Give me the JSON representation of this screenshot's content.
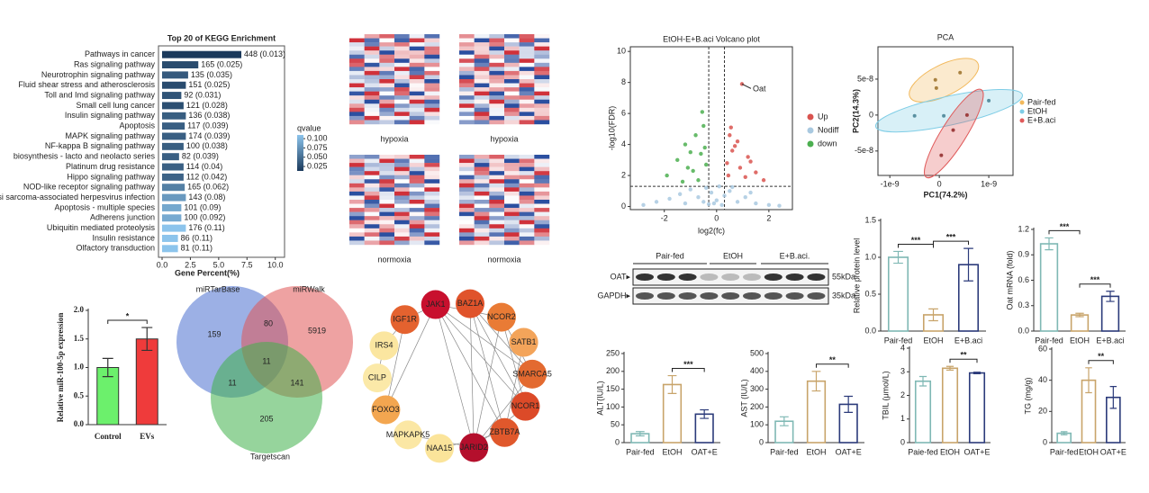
{
  "chart_data": [
    {
      "type": "barh",
      "title": "Top 20 of KEGG Enrichment",
      "xlabel": "Gene Percent(%)",
      "categories": [
        "Pathways in cancer",
        "Ras signaling pathway",
        "Neurotrophin signaling pathway",
        "Fluid shear stress and atherosclerosis",
        "Toll and Imd signaling pathway",
        "Small cell lung cancer",
        "Insulin signaling pathway",
        "Apoptosis",
        "MAPK signaling pathway",
        "NF-kappa B signaling pathway",
        "biosynthesis - lacto and neolacto series",
        "Platinum drug resistance",
        "Hippo signaling pathway",
        "NOD-like receptor signaling pathway",
        "Kaposi sarcoma-associated herpesvirus infection",
        "Apoptosis - multiple species",
        "Adherens junction",
        "Ubiquitin mediated proteolysis",
        "Insulin resistance",
        "Olfactory transduction"
      ],
      "values": [
        7.0,
        3.2,
        2.3,
        2.1,
        1.7,
        1.9,
        2.1,
        2.0,
        2.1,
        1.9,
        1.5,
        1.9,
        1.9,
        2.0,
        2.1,
        1.7,
        1.7,
        2.1,
        1.4,
        1.4
      ],
      "bar_labels": [
        "448 (0.013)",
        "165 (0.025)",
        "135 (0.035)",
        "151 (0.025)",
        "92 (0.031)",
        "121 (0.028)",
        "136 (0.038)",
        "117 (0.039)",
        "174 (0.039)",
        "100 (0.038)",
        "82 (0.039)",
        "114 (0.04)",
        "112 (0.042)",
        "165 (0.062)",
        "143 (0.08)",
        "101 (0.09)",
        "100 (0.092)",
        "176 (0.11)",
        "86 (0.11)",
        "81 (0.11)"
      ],
      "qvalues": [
        0.013,
        0.025,
        0.035,
        0.025,
        0.031,
        0.028,
        0.038,
        0.039,
        0.039,
        0.038,
        0.039,
        0.04,
        0.042,
        0.062,
        0.08,
        0.09,
        0.092,
        0.11,
        0.11,
        0.11
      ],
      "colorbar_title": "qvalue",
      "clim": [
        0.013,
        0.11
      ],
      "cmap": [
        "#1b3a5c",
        "#8cc4ec"
      ],
      "cticks": [
        {
          "value": 0.1,
          "label": "0.100"
        },
        0.075,
        {
          "value": 0.05,
          "label": "0.050"
        },
        0.025
      ],
      "xlim": [
        0,
        10.5
      ],
      "xticks": [
        {
          "value": 0,
          "label": "0.0"
        },
        2.5,
        {
          "value": 5,
          "label": "5.0"
        },
        7.5,
        {
          "value": 10,
          "label": "10.0"
        }
      ]
    },
    {
      "type": "bar",
      "ylabel": "Relative miR-100-5p expression",
      "categories": [
        "Control",
        "EVs"
      ],
      "values": [
        1.0,
        1.5
      ],
      "errors": [
        0.16,
        0.2
      ],
      "colors": [
        "#6cf06c",
        "#ef3b3b"
      ],
      "filled": true,
      "ylim": [
        0,
        2
      ],
      "yticks": [
        {
          "value": 0,
          "label": "0.0"
        },
        0.5,
        {
          "value": 1,
          "label": "1.0"
        },
        1.5,
        {
          "value": 2,
          "label": "2.0"
        }
      ],
      "significance": [
        {
          "between": [
            "Control",
            "EVs"
          ],
          "label": "*"
        }
      ]
    },
    {
      "type": "scatter",
      "title": "EtOH-E+B.aci Volcano plot",
      "xlabel": "log2(fc)",
      "ylabel": "-log10(FDR)",
      "legend": "right",
      "xlim": [
        -3.3,
        2.9
      ],
      "ylim": [
        -0.2,
        10.3
      ],
      "xticks": [
        -2,
        0,
        2
      ],
      "yticks": [
        0,
        2,
        4,
        6,
        8,
        10
      ],
      "vlines": [
        -0.3,
        0.3
      ],
      "hline": 1.3,
      "annotation": "Oat",
      "series": [
        {
          "name": "Up",
          "color": "#d9534f",
          "x": [
            0.97,
            0.5,
            0.7,
            1.2,
            0.4,
            0.9,
            1.5,
            0.6,
            1.1,
            0.45,
            1.8,
            0.8,
            0.55,
            1.3
          ],
          "y": [
            7.9,
            4.6,
            3.9,
            3.2,
            2.8,
            2.5,
            2.2,
            3.6,
            1.9,
            2.0,
            1.7,
            4.2,
            5.1,
            2.9
          ]
        },
        {
          "name": "Nodiff",
          "color": "#a9c9e0",
          "x": [
            -2.8,
            -2.3,
            -1.8,
            -1.4,
            -1.0,
            -0.7,
            -0.4,
            -0.2,
            0,
            0.1,
            0.3,
            0.5,
            0.8,
            1.1,
            1.5,
            2.0,
            2.4,
            -0.1,
            0.2,
            -0.5,
            0.6,
            -1.2,
            1.3,
            -0.3
          ],
          "y": [
            0.1,
            0.3,
            0.5,
            0.8,
            1.1,
            0.6,
            1.2,
            0.9,
            0.4,
            1.3,
            0.7,
            1.0,
            0.3,
            0.6,
            0.2,
            0.1,
            0.05,
            0.2,
            0.1,
            0.3,
            1.25,
            0.2,
            0.9,
            0.15
          ]
        },
        {
          "name": "down",
          "color": "#4caf50",
          "x": [
            -0.5,
            -0.8,
            -1.2,
            -0.6,
            -1.5,
            -0.4,
            -0.9,
            -1.9,
            -0.7,
            -1.1,
            -0.45,
            -1.3,
            -0.55,
            -1.0
          ],
          "y": [
            5.2,
            4.6,
            4.0,
            3.4,
            3.0,
            2.7,
            2.3,
            2.0,
            1.7,
            2.5,
            3.8,
            1.6,
            6.1,
            3.5
          ]
        }
      ]
    },
    {
      "type": "pca",
      "title": "PCA",
      "xlabel": "PC1(74.2%)",
      "ylabel": "PC2(14.3%)",
      "legend": "right",
      "xlim": [
        -1.24e-09,
        1.49e-09
      ],
      "ylim": [
        -8.4e-08,
        9.5e-08
      ],
      "xticks": [
        {
          "value": -1e-09,
          "label": "-1e-9"
        },
        0,
        {
          "value": 1e-09,
          "label": "1e-9"
        }
      ],
      "yticks": [
        {
          "value": -5e-08,
          "label": "-5e-8"
        },
        0,
        {
          "value": 5e-08,
          "label": "5e-8"
        }
      ],
      "series": [
        {
          "name": "Pair-fed",
          "color": "#f2b95c",
          "x": [
            -6e-11,
            4.2e-10,
            -8e-11
          ],
          "y": [
            3.75e-08,
            5.9e-08,
            4.9e-08
          ]
        },
        {
          "name": "EtOH",
          "color": "#7fcde6",
          "x": [
            -5e-10,
            9e-11,
            1e-09
          ],
          "y": [
            -1e-09,
            -1e-09,
            2e-08
          ]
        },
        {
          "name": "E+B.aci",
          "color": "#e05a5a",
          "x": [
            2.8e-10,
            4e-11,
            5.6e-10
          ],
          "y": [
            -2.1e-08,
            -5.6e-08,
            0
          ]
        }
      ]
    },
    {
      "type": "bar",
      "ylabel": "Relative protein level",
      "categories": [
        "Pair-fed",
        "EtOH",
        "E+B.aci"
      ],
      "values": [
        1.0,
        0.22,
        0.9
      ],
      "errors": [
        0.08,
        0.08,
        0.22
      ],
      "colors": [
        "#7fb8b4",
        "#c8a46a",
        "#2b3a7a"
      ],
      "filled": false,
      "ylim": [
        0,
        1.5
      ],
      "yticks": [
        {
          "value": 0,
          "label": "0.0"
        },
        0.5,
        {
          "value": 1,
          "label": "1.0"
        },
        1.5
      ],
      "significance": [
        {
          "between": [
            "Pair-fed",
            "EtOH"
          ],
          "label": "***"
        },
        {
          "between": [
            "EtOH",
            "E+B.aci"
          ],
          "label": "***"
        }
      ]
    },
    {
      "type": "bar",
      "ylabel": "Oat mRNA (fold)",
      "categories": [
        "Pair-fed",
        "EtOH",
        "E+B.aci"
      ],
      "values": [
        1.03,
        0.19,
        0.41
      ],
      "errors": [
        0.07,
        0.02,
        0.06
      ],
      "colors": [
        "#7fb8b4",
        "#c8a46a",
        "#2b3a7a"
      ],
      "filled": false,
      "ylim": [
        0,
        1.2
      ],
      "yticks": [
        {
          "value": 0,
          "label": "0.0"
        },
        0.3,
        0.6,
        0.9,
        {
          "value": 1.2,
          "label": "1.2"
        }
      ],
      "significance": [
        {
          "between": [
            "Pair-fed",
            "EtOH"
          ],
          "label": "***"
        },
        {
          "between": [
            "EtOH",
            "E+B.aci"
          ],
          "label": "***"
        }
      ]
    },
    {
      "type": "bar",
      "ylabel": "ALT(IU/L)",
      "categories": [
        "Pair-fed",
        "EtOH",
        "OAT+E"
      ],
      "values": [
        25,
        163,
        80
      ],
      "errors": [
        6,
        25,
        12
      ],
      "colors": [
        "#7fb8b4",
        "#c8a46a",
        "#2b3a7a"
      ],
      "filled": false,
      "ylim": [
        0,
        250
      ],
      "yticks": [
        0,
        50,
        100,
        150,
        200,
        250
      ],
      "significance": [
        {
          "between": [
            "EtOH",
            "OAT+E"
          ],
          "label": "***"
        }
      ]
    },
    {
      "type": "bar",
      "ylabel": "AST (IU/L)",
      "categories": [
        "Pair-fed",
        "EtOH",
        "OAT+E"
      ],
      "values": [
        120,
        345,
        215
      ],
      "errors": [
        25,
        55,
        45
      ],
      "colors": [
        "#7fb8b4",
        "#c8a46a",
        "#2b3a7a"
      ],
      "filled": false,
      "ylim": [
        0,
        500
      ],
      "yticks": [
        0,
        100,
        200,
        300,
        400,
        500
      ],
      "significance": [
        {
          "between": [
            "EtOH",
            "OAT+E"
          ],
          "label": "**"
        }
      ]
    },
    {
      "type": "bar",
      "ylabel": "TBIL (μmol/L)",
      "categories": [
        "Paie-fed",
        "EtOH",
        "OAT+E"
      ],
      "values": [
        2.6,
        3.15,
        2.95
      ],
      "errors": [
        0.2,
        0.08,
        0.03
      ],
      "colors": [
        "#7fb8b4",
        "#c8a46a",
        "#2b3a7a"
      ],
      "filled": false,
      "ylim": [
        0,
        4
      ],
      "yticks": [
        0,
        1,
        2,
        3,
        4
      ],
      "significance": [
        {
          "between": [
            "EtOH",
            "OAT+E"
          ],
          "label": "**"
        }
      ]
    },
    {
      "type": "bar",
      "ylabel": "TG (mg/g)",
      "categories": [
        "Pair-fed",
        "EtOH",
        "OAT+E"
      ],
      "values": [
        6,
        40,
        29
      ],
      "errors": [
        1,
        8,
        7
      ],
      "colors": [
        "#7fb8b4",
        "#c8a46a",
        "#2b3a7a"
      ],
      "filled": false,
      "ylim": [
        0,
        60
      ],
      "yticks": [
        0,
        20,
        40,
        60
      ],
      "significance": [
        {
          "between": [
            "EtOH",
            "OAT+E"
          ],
          "label": "**"
        }
      ]
    }
  ],
  "heatmaps": {
    "labels": [
      "hypoxia",
      "hypoxia",
      "normoxia",
      "normoxia"
    ]
  },
  "venn": {
    "sets": [
      "miRTarBase",
      "miRWalk",
      "Targetscan"
    ],
    "regions": [
      "159",
      "80",
      "5919",
      "11",
      "11",
      "141",
      "205"
    ]
  },
  "network": {
    "nodes": [
      {
        "label": "JAK1",
        "color": "#c8102e"
      },
      {
        "label": "BAZ1A",
        "color": "#e0532b"
      },
      {
        "label": "NCOR2",
        "color": "#e97b35"
      },
      {
        "label": "SATB1",
        "color": "#f3a45a"
      },
      {
        "label": "SMARCA5",
        "color": "#e36a30"
      },
      {
        "label": "NCOR1",
        "color": "#dc4a28"
      },
      {
        "label": "ZBTB7A",
        "color": "#e0582c"
      },
      {
        "label": "JARID2",
        "color": "#b40f2c"
      },
      {
        "label": "NAA15",
        "color": "#fbe49a"
      },
      {
        "label": "MAPKAPK5",
        "color": "#fbe7a4"
      },
      {
        "label": "FOXO3",
        "color": "#f3a650"
      },
      {
        "label": "CILP",
        "color": "#fbe9a8"
      },
      {
        "label": "IRS4",
        "color": "#fbe6a0"
      },
      {
        "label": "IGF1R",
        "color": "#e4622f"
      }
    ]
  },
  "western_blot": {
    "groups": [
      "Pair-fed",
      "EtOH",
      "E+B.aci."
    ],
    "rows": [
      "OAT▸",
      "GAPDH▸"
    ],
    "sizes": [
      "55kDa",
      "35kDa"
    ]
  }
}
